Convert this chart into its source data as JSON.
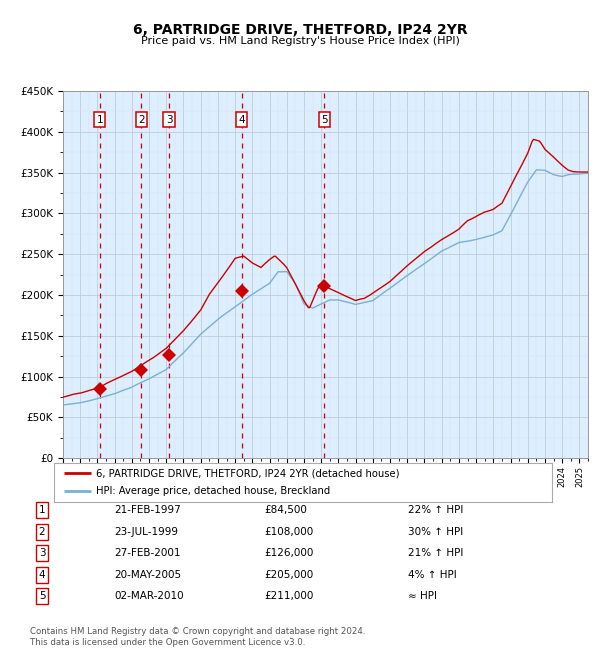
{
  "title": "6, PARTRIDGE DRIVE, THETFORD, IP24 2YR",
  "subtitle": "Price paid vs. HM Land Registry's House Price Index (HPI)",
  "bg_color": "#ddeeff",
  "hpi_color": "#7ab0d4",
  "price_color": "#cc0000",
  "marker_color": "#cc0000",
  "dashed_line_color": "#cc0000",
  "label_box_color": "#cc0000",
  "ylim": [
    0,
    450000
  ],
  "yticks": [
    0,
    50000,
    100000,
    150000,
    200000,
    250000,
    300000,
    350000,
    400000,
    450000
  ],
  "ytick_labels": [
    "£0",
    "£50K",
    "£100K",
    "£150K",
    "£200K",
    "£250K",
    "£300K",
    "£350K",
    "£400K",
    "£450K"
  ],
  "sale_dates": [
    1997.13,
    1999.56,
    2001.16,
    2005.38,
    2010.17
  ],
  "sale_prices": [
    84500,
    108000,
    126000,
    205000,
    211000
  ],
  "sale_labels": [
    "1",
    "2",
    "3",
    "4",
    "5"
  ],
  "legend_red_label": "6, PARTRIDGE DRIVE, THETFORD, IP24 2YR (detached house)",
  "legend_blue_label": "HPI: Average price, detached house, Breckland",
  "table_data": [
    [
      "1",
      "21-FEB-1997",
      "£84,500",
      "22% ↑ HPI"
    ],
    [
      "2",
      "23-JUL-1999",
      "£108,000",
      "30% ↑ HPI"
    ],
    [
      "3",
      "27-FEB-2001",
      "£126,000",
      "21% ↑ HPI"
    ],
    [
      "4",
      "20-MAY-2005",
      "£205,000",
      "4% ↑ HPI"
    ],
    [
      "5",
      "02-MAR-2010",
      "£211,000",
      "≈ HPI"
    ]
  ],
  "footer": "Contains HM Land Registry data © Crown copyright and database right 2024.\nThis data is licensed under the Open Government Licence v3.0."
}
